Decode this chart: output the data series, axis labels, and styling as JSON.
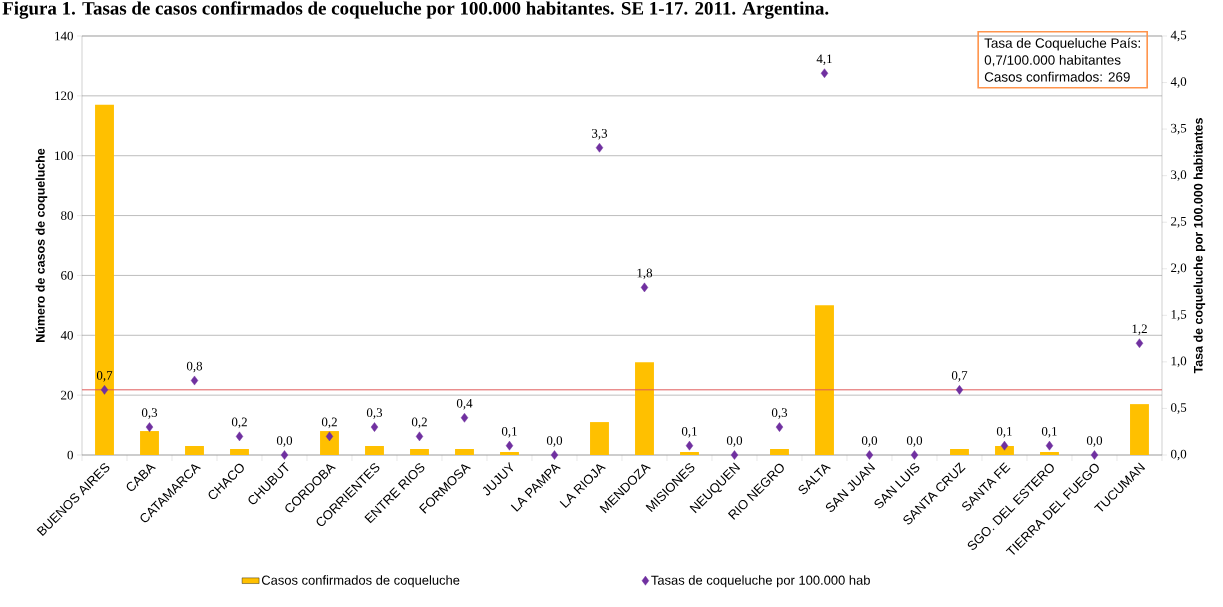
{
  "chart_data": {
    "type": "bar",
    "title": "Figura 1. Tasas de casos confirmados de coqueluche por 100.000 habitantes. SE 1-17. 2011. Argentina.",
    "ylabel": "Número de casos de coqueluche",
    "y2label": "Tasa de coqueluche por 100.000 habitantes",
    "categories": [
      "BUENOS AIRES",
      "CABA",
      "CATAMARCA",
      "CHACO",
      "CHUBUT",
      "CORDOBA",
      "CORRIENTES",
      "ENTRE RIOS",
      "FORMOSA",
      "JUJUY",
      "LA PAMPA",
      "LA RIOJA",
      "MENDOZA",
      "MISIONES",
      "NEUQUEN",
      "RIO NEGRO",
      "SALTA",
      "SAN JUAN",
      "SAN LUIS",
      "SANTA CRUZ",
      "SANTA FE",
      "SGO. DEL ESTERO",
      "TIERRA DEL FUEGO",
      "TUCUMAN"
    ],
    "series": [
      {
        "name": "Casos confirmados de coqueluche",
        "color": "#ffc000",
        "values": [
          117,
          8,
          3,
          2,
          0,
          8,
          3,
          2,
          2,
          1,
          0,
          11,
          31,
          1,
          0,
          2,
          50,
          0,
          0,
          2,
          3,
          1,
          0,
          17
        ]
      },
      {
        "name": "Tasas de coqueluche por 100.000 hab",
        "type": "scatter",
        "axis": "y2",
        "color": "#7030a0",
        "values": [
          0.7,
          0.3,
          0.8,
          0.2,
          0.0,
          0.2,
          0.3,
          0.2,
          0.4,
          0.1,
          0.0,
          3.3,
          1.8,
          0.1,
          0.0,
          0.3,
          4.1,
          0.0,
          0.0,
          0.7,
          0.1,
          0.1,
          0.0,
          1.2
        ],
        "value_labels": [
          "0,7",
          "0,3",
          "0,8",
          "0,2",
          "0,0",
          "0,2",
          "0,3",
          "0,2",
          "0,4",
          "0,1",
          "0,0",
          "3,3",
          "1,8",
          "0,1",
          "0,0",
          "0,3",
          "4,1",
          "0,0",
          "0,0",
          "0,7",
          "0,1",
          "0,1",
          "0,0",
          "1,2"
        ]
      }
    ],
    "ylim": [
      0,
      140
    ],
    "yticks": [
      0,
      20,
      40,
      60,
      80,
      100,
      120,
      140
    ],
    "y2lim": [
      0,
      4.5
    ],
    "y2ticks": [
      {
        "value": 0,
        "label": "0,0"
      },
      {
        "value": 0.5,
        "label": "0,5"
      },
      {
        "value": 1,
        "label": "1,0"
      },
      {
        "value": 1.5,
        "label": "1,5"
      },
      {
        "value": 2,
        "label": "2,0"
      },
      {
        "value": 2.5,
        "label": "2,5"
      },
      {
        "value": 3,
        "label": "3,0"
      },
      {
        "value": 3.5,
        "label": "3,5"
      },
      {
        "value": 4,
        "label": "4,0"
      },
      {
        "value": 4.5,
        "label": "4,5"
      }
    ],
    "ref_lines": [
      {
        "axis": "y2",
        "value": 0.7,
        "color": "#e05a5a"
      }
    ],
    "annotations": [
      "Tasa de Coqueluche País:",
      "0,7/100.000 habitantes",
      "Casos confirmados: 269"
    ],
    "grid": "y",
    "legend": "bottom",
    "marker": "diamond"
  }
}
